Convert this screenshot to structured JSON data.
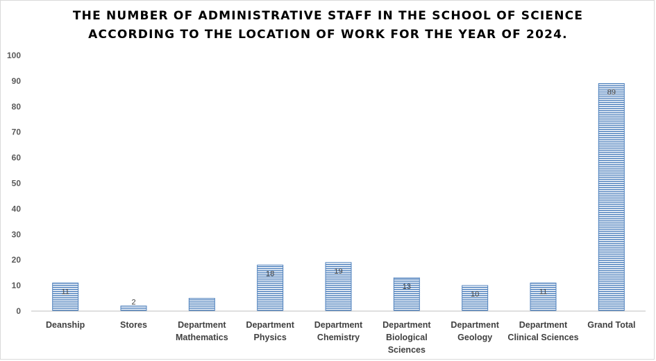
{
  "chart_data": {
    "type": "bar",
    "title_lines": [
      "THE NUMBER OF ADMINISTRATIVE STAFF IN THE SCHOOL OF SCIENCE",
      "ACCORDING TO THE LOCATION OF WORK FOR THE YEAR OF 2024."
    ],
    "categories": [
      [
        "Deanship"
      ],
      [
        "Stores"
      ],
      [
        "Department",
        "Mathematics"
      ],
      [
        "Department",
        "Physics"
      ],
      [
        "Department",
        "Chemistry"
      ],
      [
        "Department",
        "Biological",
        "Sciences"
      ],
      [
        "Department",
        "Geology"
      ],
      [
        "Department",
        "Clinical Sciences"
      ],
      [
        "Grand Total"
      ]
    ],
    "values": [
      11,
      2,
      5,
      18,
      19,
      13,
      10,
      11,
      89
    ],
    "data_labels": [
      "11",
      "2",
      "",
      "18",
      "19",
      "13",
      "10",
      "11",
      "89"
    ],
    "ylim": [
      0,
      100
    ],
    "yticks": [
      0,
      10,
      20,
      30,
      40,
      50,
      60,
      70,
      80,
      90,
      100
    ],
    "grid": false,
    "legend": "none",
    "colors": {
      "bar_fill": "#9dc3e6",
      "bar_stripe": "#4f81bd",
      "bar_border": "#4f81bd",
      "axis": "#bfbfbf"
    }
  }
}
